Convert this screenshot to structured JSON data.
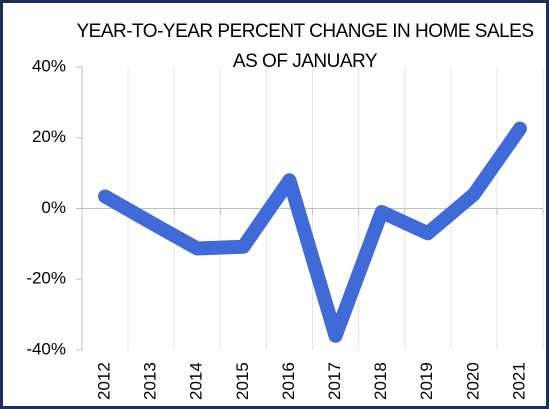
{
  "chart_data": {
    "type": "line",
    "title_lines": [
      "YEAR-TO-YEAR PERCENT CHANGE IN HOME SALES",
      "AS OF JANUARY"
    ],
    "categories": [
      "2012",
      "2013",
      "2014",
      "2015",
      "2016",
      "2017",
      "2018",
      "2019",
      "2020",
      "2021"
    ],
    "series": [
      {
        "color": "#3f6ad8",
        "values": [
          3.4,
          -4,
          -11.3,
          -10.8,
          8,
          -36,
          -1,
          -7,
          4,
          22.6
        ]
      }
    ],
    "ylim": [
      -40,
      40
    ],
    "yticks": [
      {
        "value": -40,
        "label": "-40%"
      },
      {
        "value": -20,
        "label": "-20%"
      },
      {
        "value": 0,
        "label": "0%"
      },
      {
        "value": 20,
        "label": "20%"
      },
      {
        "value": 40,
        "label": "40%"
      }
    ],
    "grid": true
  }
}
